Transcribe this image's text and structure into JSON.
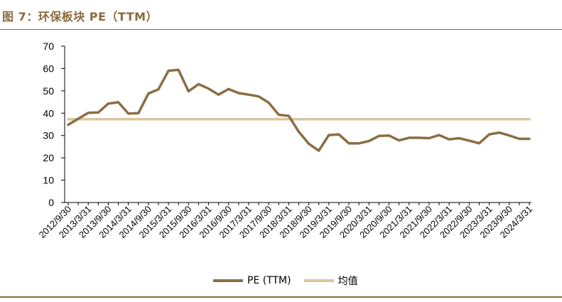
{
  "page": {
    "figure_title": "图 7：环保板块 PE（TTM）"
  },
  "colors": {
    "accent": "#8a6a3e",
    "pe_line": "#8c6d44",
    "mean_line": "#d9c69b"
  },
  "chart_data": {
    "type": "line",
    "title": "",
    "xlabel": "",
    "ylabel": "",
    "ylim": [
      0,
      70
    ],
    "yticks": [
      0,
      10,
      20,
      30,
      40,
      50,
      60,
      70
    ],
    "grid": false,
    "legend_position": "bottom",
    "x": [
      "2012/9/30",
      "2012/12/31",
      "2013/3/31",
      "2013/6/30",
      "2013/9/30",
      "2013/12/31",
      "2014/3/31",
      "2014/6/30",
      "2014/9/30",
      "2014/12/31",
      "2015/3/31",
      "2015/6/30",
      "2015/9/30",
      "2015/12/31",
      "2016/3/31",
      "2016/6/30",
      "2016/9/30",
      "2016/12/31",
      "2017/3/31",
      "2017/6/30",
      "2017/9/30",
      "2017/12/31",
      "2018/3/31",
      "2018/6/30",
      "2018/9/30",
      "2018/12/31",
      "2019/3/31",
      "2019/6/30",
      "2019/9/30",
      "2019/12/31",
      "2020/3/31",
      "2020/6/30",
      "2020/9/30",
      "2020/12/31",
      "2021/3/31",
      "2021/6/30",
      "2021/9/30",
      "2021/12/31",
      "2022/3/31",
      "2022/6/30",
      "2022/9/30",
      "2022/12/31",
      "2023/3/31",
      "2023/6/30",
      "2023/9/30",
      "2023/12/31",
      "2024/3/31"
    ],
    "x_tick_labels": [
      "2012/9/30",
      "2013/3/31",
      "2013/9/30",
      "2014/3/31",
      "2014/9/30",
      "2015/3/31",
      "2015/9/30",
      "2016/3/31",
      "2016/9/30",
      "2017/3/31",
      "2017/9/30",
      "2018/3/31",
      "2018/9/30",
      "2019/3/31",
      "2019/9/30",
      "2020/3/31",
      "2020/9/30",
      "2021/3/31",
      "2021/9/30",
      "2022/3/31",
      "2022/9/30",
      "2023/3/31",
      "2023/9/30",
      "2024/3/31"
    ],
    "series": [
      {
        "name": "PE (TTM)",
        "values": [
          34.8,
          37.5,
          40.2,
          40.3,
          44.3,
          44.9,
          39.8,
          40.0,
          48.8,
          50.7,
          59.0,
          59.4,
          49.8,
          53.0,
          51.0,
          48.3,
          50.8,
          49.0,
          48.3,
          47.5,
          44.7,
          39.3,
          38.8,
          31.7,
          26.3,
          23.2,
          30.2,
          30.5,
          26.5,
          26.5,
          27.5,
          29.8,
          30.0,
          27.8,
          29.0,
          29.0,
          28.8,
          30.2,
          28.3,
          28.8,
          27.7,
          26.5,
          30.5,
          31.3,
          30.0,
          28.5,
          28.5
        ]
      },
      {
        "name": "均值",
        "values": [
          37.3,
          37.3,
          37.3,
          37.3,
          37.3,
          37.3,
          37.3,
          37.3,
          37.3,
          37.3,
          37.3,
          37.3,
          37.3,
          37.3,
          37.3,
          37.3,
          37.3,
          37.3,
          37.3,
          37.3,
          37.3,
          37.3,
          37.3,
          37.3,
          37.3,
          37.3,
          37.3,
          37.3,
          37.3,
          37.3,
          37.3,
          37.3,
          37.3,
          37.3,
          37.3,
          37.3,
          37.3,
          37.3,
          37.3,
          37.3,
          37.3,
          37.3,
          37.3,
          37.3,
          37.3,
          37.3,
          37.3
        ]
      }
    ]
  }
}
